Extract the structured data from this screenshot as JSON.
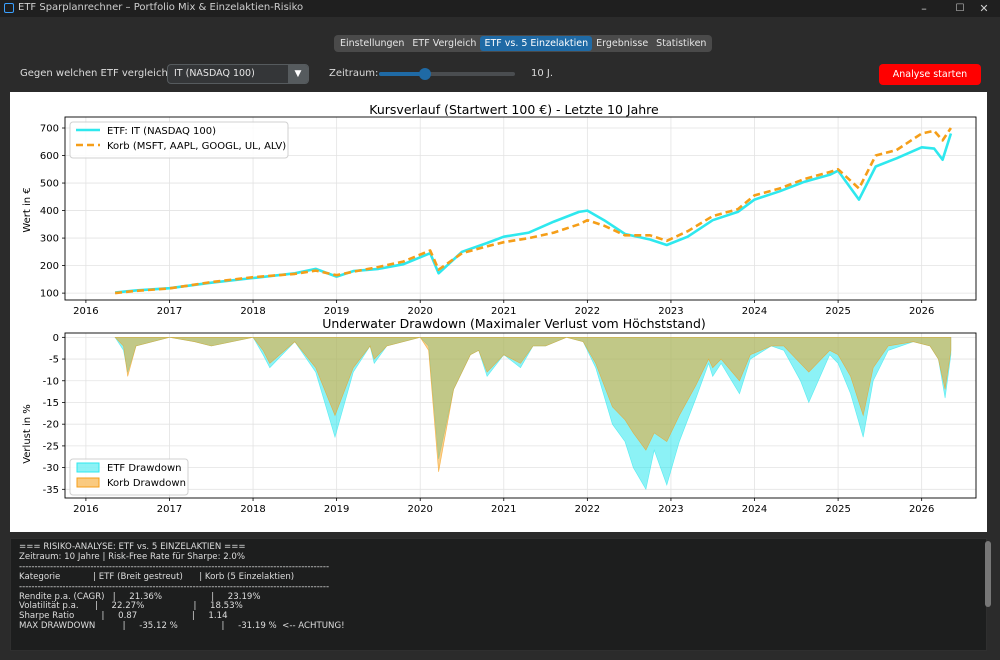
{
  "window": {
    "title": "ETF Sparplanrechner – Portfolio Mix & Einzelaktien-Risiko",
    "minimize": "–",
    "maximize": "☐",
    "close": "✕"
  },
  "tabs": [
    {
      "label": "Einstellungen",
      "active": false
    },
    {
      "label": "ETF Vergleich",
      "active": false
    },
    {
      "label": "ETF vs. 5 Einzelaktien",
      "active": true
    },
    {
      "label": "Ergebnisse",
      "active": false
    },
    {
      "label": "Statistiken",
      "active": false
    }
  ],
  "controls": {
    "compare_label": "Gegen welchen ETF vergleichen?",
    "etf_select_value": "IT (NASDAQ 100)",
    "period_label": "Zeitraum:",
    "period_value_text": "10 J.",
    "slider_fraction": 0.34,
    "run_button": "Analyse starten"
  },
  "colors": {
    "etf": "#2ee8ee",
    "basket": "#f59e18",
    "accent": "#1f6aa5",
    "run_button": "#ff0000"
  },
  "chart_data": [
    {
      "type": "line",
      "title": "Kursverlauf (Startwert 100 €) - Letzte 10 Jahre",
      "xlabel": "",
      "ylabel": "Wert in €",
      "xlim": [
        2015.75,
        2026.65
      ],
      "ylim": [
        75,
        740
      ],
      "xticks": [
        2016,
        2017,
        2018,
        2019,
        2020,
        2021,
        2022,
        2023,
        2024,
        2025,
        2026
      ],
      "yticks": [
        100,
        200,
        300,
        400,
        500,
        600,
        700
      ],
      "grid": true,
      "legend": "top-left",
      "series": [
        {
          "name": "ETF: IT (NASDAQ 100)",
          "style": "solid",
          "x": [
            2016.35,
            2016.6,
            2017.0,
            2017.5,
            2018.0,
            2018.5,
            2018.75,
            2019.0,
            2019.2,
            2019.5,
            2019.8,
            2020.0,
            2020.12,
            2020.22,
            2020.5,
            2020.8,
            2021.0,
            2021.3,
            2021.6,
            2021.9,
            2022.0,
            2022.2,
            2022.45,
            2022.75,
            2022.95,
            2023.2,
            2023.5,
            2023.8,
            2024.0,
            2024.3,
            2024.6,
            2024.9,
            2025.0,
            2025.25,
            2025.45,
            2025.7,
            2026.0,
            2026.15,
            2026.25,
            2026.35
          ],
          "y": [
            102,
            110,
            118,
            138,
            155,
            172,
            188,
            160,
            180,
            188,
            205,
            230,
            245,
            172,
            250,
            282,
            305,
            320,
            360,
            395,
            400,
            365,
            315,
            295,
            275,
            305,
            365,
            395,
            440,
            470,
            505,
            530,
            545,
            440,
            560,
            590,
            630,
            625,
            585,
            680
          ]
        },
        {
          "name": "Korb (MSFT, AAPL, GOOGL, UL, ALV)",
          "style": "dashed",
          "x": [
            2016.35,
            2016.6,
            2017.0,
            2017.5,
            2018.0,
            2018.5,
            2018.75,
            2019.0,
            2019.2,
            2019.5,
            2019.8,
            2020.0,
            2020.12,
            2020.22,
            2020.5,
            2020.8,
            2021.0,
            2021.3,
            2021.6,
            2021.9,
            2022.0,
            2022.2,
            2022.45,
            2022.75,
            2022.95,
            2023.2,
            2023.5,
            2023.8,
            2024.0,
            2024.3,
            2024.6,
            2024.9,
            2025.0,
            2025.25,
            2025.45,
            2025.7,
            2026.0,
            2026.15,
            2026.25,
            2026.35
          ],
          "y": [
            100,
            108,
            117,
            140,
            158,
            170,
            182,
            165,
            178,
            195,
            215,
            240,
            255,
            185,
            245,
            270,
            285,
            300,
            320,
            350,
            365,
            345,
            310,
            310,
            290,
            325,
            380,
            405,
            455,
            480,
            515,
            540,
            550,
            480,
            600,
            620,
            680,
            690,
            655,
            700
          ]
        }
      ]
    },
    {
      "type": "area",
      "title": "Underwater Drawdown (Maximaler Verlust vom Höchststand)",
      "xlabel": "",
      "ylabel": "Verlust in %",
      "xlim": [
        2015.75,
        2026.65
      ],
      "ylim": [
        -37,
        1
      ],
      "xticks": [
        2016,
        2017,
        2018,
        2019,
        2020,
        2021,
        2022,
        2023,
        2024,
        2025,
        2026
      ],
      "yticks": [
        0,
        -5,
        -10,
        -15,
        -20,
        -25,
        -30,
        -35
      ],
      "grid": true,
      "legend": "bottom-left",
      "series": [
        {
          "name": "ETF Drawdown",
          "x": [
            2016.35,
            2016.45,
            2016.5,
            2016.6,
            2017.0,
            2017.3,
            2017.5,
            2018.0,
            2018.12,
            2018.2,
            2018.5,
            2018.75,
            2018.98,
            2019.2,
            2019.4,
            2019.45,
            2019.6,
            2020.0,
            2020.1,
            2020.22,
            2020.4,
            2020.6,
            2020.7,
            2020.8,
            2021.0,
            2021.2,
            2021.35,
            2021.5,
            2021.75,
            2021.95,
            2022.1,
            2022.3,
            2022.45,
            2022.55,
            2022.7,
            2022.8,
            2022.95,
            2023.1,
            2023.3,
            2023.45,
            2023.5,
            2023.6,
            2023.82,
            2023.95,
            2024.2,
            2024.35,
            2024.55,
            2024.65,
            2024.9,
            2025.0,
            2025.15,
            2025.3,
            2025.42,
            2025.6,
            2025.9,
            2026.1,
            2026.2,
            2026.28,
            2026.35
          ],
          "y": [
            0,
            -3,
            -8,
            -2,
            0,
            -1,
            -2,
            0,
            -4,
            -7,
            -1,
            -8,
            -23,
            -8,
            -2,
            -6,
            -2,
            0,
            -2,
            -28,
            -12,
            -4,
            -3,
            -9,
            -4,
            -7,
            -2,
            -2,
            0,
            -1,
            -7,
            -20,
            -24,
            -30,
            -35,
            -26,
            -34,
            -24,
            -14,
            -6,
            -9,
            -6,
            -13,
            -5,
            -2,
            -3,
            -10,
            -15,
            -4,
            -6,
            -13,
            -23,
            -10,
            -3,
            -1,
            -2,
            -5,
            -14,
            -4
          ]
        },
        {
          "name": "Korb Drawdown",
          "x": [
            2016.35,
            2016.45,
            2016.5,
            2016.6,
            2017.0,
            2017.3,
            2017.5,
            2018.0,
            2018.12,
            2018.2,
            2018.5,
            2018.75,
            2018.98,
            2019.2,
            2019.4,
            2019.45,
            2019.6,
            2020.0,
            2020.1,
            2020.22,
            2020.4,
            2020.6,
            2020.7,
            2020.8,
            2021.0,
            2021.2,
            2021.35,
            2021.5,
            2021.75,
            2021.95,
            2022.1,
            2022.3,
            2022.45,
            2022.55,
            2022.7,
            2022.8,
            2022.95,
            2023.1,
            2023.3,
            2023.45,
            2023.5,
            2023.6,
            2023.82,
            2023.95,
            2024.2,
            2024.35,
            2024.55,
            2024.65,
            2024.9,
            2025.0,
            2025.15,
            2025.3,
            2025.42,
            2025.6,
            2025.9,
            2026.1,
            2026.2,
            2026.28,
            2026.35
          ],
          "y": [
            0,
            -2,
            -9,
            -2,
            0,
            -1,
            -2,
            0,
            -3,
            -6,
            -1,
            -7,
            -18,
            -7,
            -2,
            -5,
            -2,
            0,
            -3,
            -31,
            -12,
            -4,
            -3,
            -8,
            -4,
            -6,
            -2,
            -2,
            0,
            -1,
            -6,
            -16,
            -19,
            -22,
            -26,
            -22,
            -24,
            -18,
            -11,
            -5,
            -7,
            -5,
            -10,
            -4,
            -2,
            -2,
            -6,
            -8,
            -3,
            -4,
            -9,
            -18,
            -7,
            -2,
            -1,
            -2,
            -5,
            -12,
            -3
          ]
        }
      ]
    }
  ],
  "report": {
    "lines": [
      "=== RISIKO-ANALYSE: ETF vs. 5 EINZELAKTIEN ===",
      "Zeitraum: 10 Jahre | Risk-Free Rate für Sharpe: 2.0%",
      "----------------------------------------------------------------------------------------------------",
      "Kategorie            | ETF (Breit gestreut)      | Korb (5 Einzelaktien)",
      "----------------------------------------------------------------------------------------------------",
      "Rendite p.a. (CAGR)   |     21.36%                  |     23.19%",
      "Volatilität p.a.      |     22.27%                  |     18.53%",
      "Sharpe Ratio          |     0.87                    |     1.14",
      "MAX DRAWDOWN          |     -35.12 %                |     -31.19 %  <-- ACHTUNG!"
    ]
  }
}
